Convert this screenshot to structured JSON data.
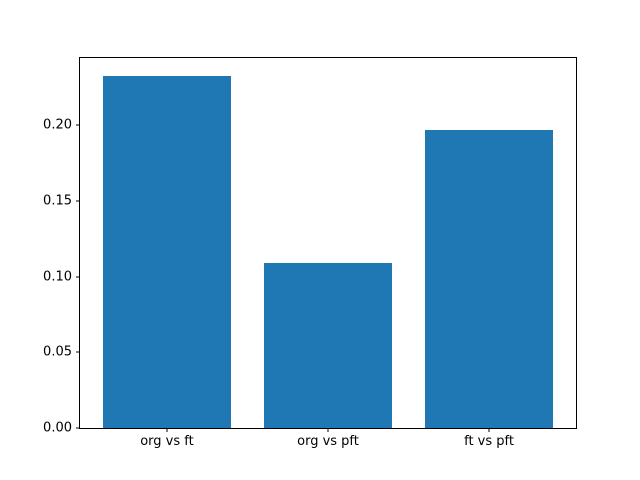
{
  "chart_data": {
    "type": "bar",
    "categories": [
      "org vs ft",
      "org vs pft",
      "ft vs pft"
    ],
    "values": [
      0.233,
      0.109,
      0.197
    ],
    "title": "",
    "xlabel": "",
    "ylabel": "",
    "ylim": [
      0,
      0.2446
    ],
    "xlim": [
      -0.54,
      2.54
    ],
    "yticks": [
      0.0,
      0.05,
      0.1,
      0.15,
      0.2
    ],
    "ytick_labels": [
      "0.00",
      "0.05",
      "0.10",
      "0.15",
      "0.20"
    ],
    "bar_width": 0.8,
    "bar_color": "#1f77b4",
    "grid": false,
    "legend": false,
    "background_color": "#ffffff",
    "spine_color": "#000000",
    "text_color": "#000000"
  }
}
